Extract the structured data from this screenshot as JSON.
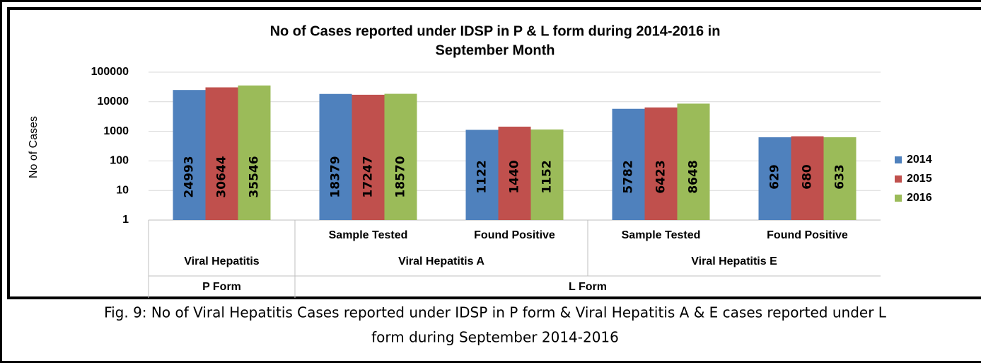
{
  "chart_data": {
    "type": "bar",
    "title": [
      "No of Cases reported under IDSP in P & L form during 2014-2016 in",
      "September Month"
    ],
    "ylabel": "No of Cases",
    "caption": [
      "Fig. 9: No of Viral Hepatitis Cases reported under IDSP in P form & Viral Hepatitis A & E cases reported under L",
      "form during September 2014-2016"
    ],
    "forms": [
      {
        "name": "P Form",
        "groups": [
          {
            "name": "Viral Hepatitis",
            "categories": [
              null
            ]
          }
        ]
      },
      {
        "name": "L Form",
        "groups": [
          {
            "name": "Viral Hepatitis A",
            "categories": [
              "Sample Tested",
              "Found Positive"
            ]
          },
          {
            "name": "Viral Hepatitis E",
            "categories": [
              "Sample Tested",
              "Found Positive"
            ]
          }
        ]
      }
    ],
    "series": [
      {
        "name": "2014",
        "color": "#4f81bd",
        "values": [
          24993,
          18379,
          1122,
          5782,
          629
        ]
      },
      {
        "name": "2015",
        "color": "#c0504d",
        "values": [
          30644,
          17247,
          1440,
          6423,
          680
        ]
      },
      {
        "name": "2016",
        "color": "#9bbb59",
        "values": [
          35546,
          18570,
          1152,
          8648,
          633
        ]
      }
    ],
    "ylim": [
      1,
      100000
    ],
    "yticks": [
      1,
      10,
      100,
      1000,
      10000,
      100000
    ],
    "log_scale": true,
    "grid": true,
    "legend": "right"
  }
}
